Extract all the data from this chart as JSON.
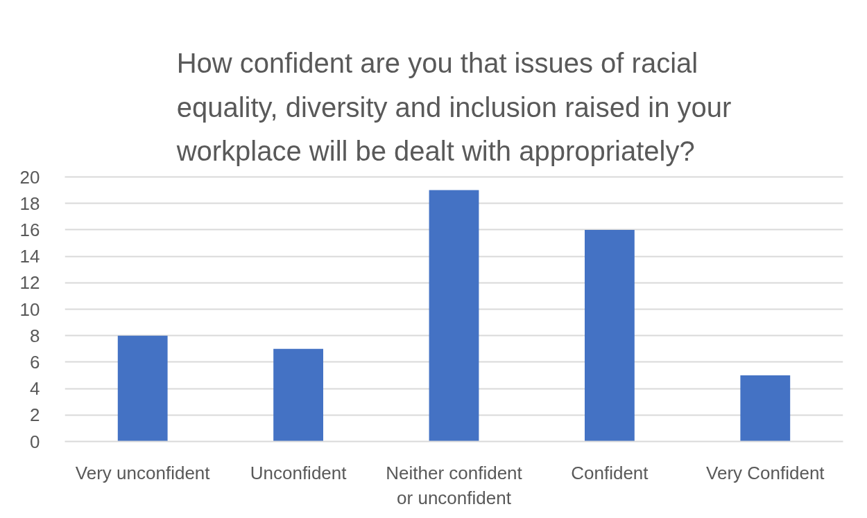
{
  "chart_data": {
    "type": "bar",
    "title": "How confident are you that issues of racial equality, diversity and inclusion raised in your workplace will be dealt with appropriately?",
    "categories": [
      "Very unconfident",
      "Unconfident",
      "Neither confident or unconfident",
      "Confident",
      "Very Confident"
    ],
    "values": [
      8,
      7,
      19,
      16,
      5
    ],
    "color": "#4472c4",
    "ylim": [
      0,
      20
    ],
    "yticks": [
      0,
      2,
      4,
      6,
      8,
      10,
      12,
      14,
      16,
      18,
      20
    ],
    "grid": "y"
  }
}
